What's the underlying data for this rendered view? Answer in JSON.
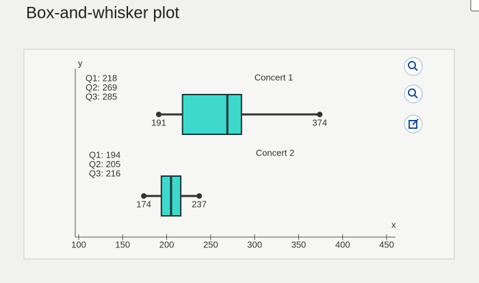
{
  "header": {
    "title": "Box-and-whisker plot"
  },
  "chart_data": {
    "type": "box",
    "x_label": "x",
    "y_label": "y",
    "xlim": [
      100,
      450
    ],
    "xticks": [
      100,
      150,
      200,
      250,
      300,
      350,
      400,
      450
    ],
    "color": "#3fd9cc",
    "series": [
      {
        "name": "Concert 1",
        "min": 191,
        "q1": 218,
        "median": 269,
        "q3": 285,
        "max": 374,
        "q_labels": [
          "Q1: 218",
          "Q2: 269",
          "Q3: 285"
        ]
      },
      {
        "name": "Concert 2",
        "min": 174,
        "q1": 194,
        "median": 205,
        "q3": 216,
        "max": 237,
        "q_labels": [
          "Q1: 194",
          "Q2: 205",
          "Q3: 216"
        ]
      }
    ]
  }
}
